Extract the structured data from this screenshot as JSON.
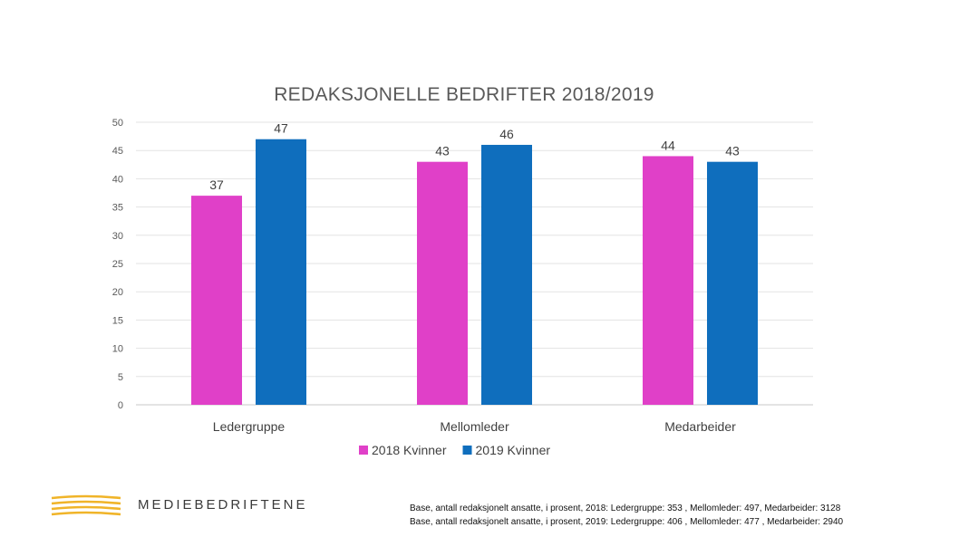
{
  "chart_data": {
    "type": "bar",
    "title": "REDAKSJONELLE BEDRIFTER 2018/2019",
    "categories": [
      "Ledergruppe",
      "Mellomleder",
      "Medarbeider"
    ],
    "series": [
      {
        "name": "2018 Kvinner",
        "values": [
          37,
          43,
          44
        ],
        "color": "#e040c8"
      },
      {
        "name": "2019 Kvinner",
        "values": [
          47,
          46,
          43
        ],
        "color": "#0f6ebd"
      }
    ],
    "ylim": [
      0,
      50
    ],
    "yticks": [
      0,
      5,
      10,
      15,
      20,
      25,
      30,
      35,
      40,
      45,
      50
    ],
    "grid": true,
    "legend": "bottom",
    "data_labels": true
  },
  "brand": {
    "name": "MEDIEBEDRIFTENE",
    "logo_icon": "gold-wave-lines-icon",
    "logo_color": "#f0b429"
  },
  "footnotes": [
    "Base, antall redaksjonelt ansatte, i prosent, 2018:  Ledergruppe: 353 , Mellomleder: 497, Medarbeider: 3128",
    "Base, antall redaksjonelt ansatte, i prosent, 2019:  Ledergruppe: 406 , Mellomleder: 477 , Medarbeider: 2940"
  ]
}
